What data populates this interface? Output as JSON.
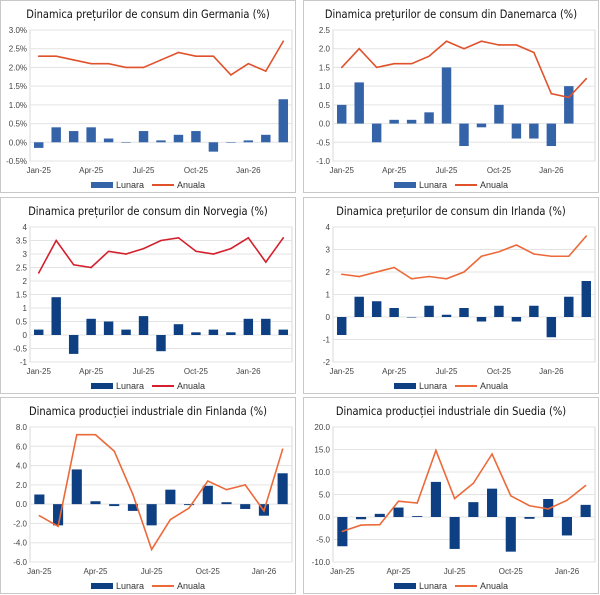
{
  "chart_data": [
    {
      "type": "bar+line",
      "title": "Dinamica prețurilor de consum din Germania (%)",
      "categories": [
        "Jan-25",
        "Feb-25",
        "Mar-25",
        "Apr-25",
        "May-25",
        "Jun-25",
        "Jul-25",
        "Aug-25",
        "Sep-25",
        "Oct-25",
        "Nov-25",
        "Dec-25",
        "Jan-26",
        "Feb-26",
        "Mar-26"
      ],
      "x_tick_labels": [
        "Jan-25",
        "Apr-25",
        "Jul-25",
        "Oct-25",
        "Jan-26"
      ],
      "ylim": [
        -0.5,
        3.0
      ],
      "y_tick_labels": [
        "-0.5%",
        "0.0%",
        "0.5%",
        "1.0%",
        "1.5%",
        "2.0%",
        "2.5%",
        "3.0%"
      ],
      "series": [
        {
          "name": "Lunara",
          "kind": "bar",
          "color": "#3563a8",
          "values": [
            -0.15,
            0.4,
            0.3,
            0.4,
            0.1,
            0,
            0.3,
            0.05,
            0.2,
            0.3,
            -0.25,
            0,
            0.05,
            0.2,
            1.15
          ]
        },
        {
          "name": "Anuala",
          "kind": "line",
          "color": "#e0522c",
          "values": [
            2.3,
            2.3,
            2.2,
            2.1,
            2.1,
            2.0,
            2.0,
            2.2,
            2.4,
            2.3,
            2.3,
            1.8,
            2.1,
            1.9,
            2.7
          ]
        }
      ],
      "grid": true,
      "legend": "bottom"
    },
    {
      "type": "bar+line",
      "title": "Dinamica prețurilor de consum din Danemarca (%)",
      "categories": [
        "Jan-25",
        "Feb-25",
        "Mar-25",
        "Apr-25",
        "May-25",
        "Jun-25",
        "Jul-25",
        "Aug-25",
        "Sep-25",
        "Oct-25",
        "Nov-25",
        "Dec-25",
        "Jan-26",
        "Feb-26",
        "Mar-26"
      ],
      "x_tick_labels": [
        "Jan-25",
        "Apr-25",
        "Jul-25",
        "Oct-25",
        "Jan-26"
      ],
      "ylim": [
        -1.0,
        2.5
      ],
      "y_tick_labels": [
        "-1.0",
        "-0.5",
        "0.0",
        "0.5",
        "1.0",
        "1.5",
        "2.0",
        "2.5"
      ],
      "series": [
        {
          "name": "Lunara",
          "kind": "bar",
          "color": "#3563a8",
          "values": [
            0.5,
            1.1,
            -0.5,
            0.1,
            0.1,
            0.3,
            1.5,
            -0.6,
            -0.1,
            0.5,
            -0.4,
            -0.4,
            -0.6,
            1.0,
            null
          ]
        },
        {
          "name": "Anuala",
          "kind": "line",
          "color": "#e0522c",
          "values": [
            1.5,
            2.0,
            1.5,
            1.6,
            1.6,
            1.8,
            2.2,
            2.0,
            2.2,
            2.1,
            2.1,
            1.9,
            0.8,
            0.7,
            1.2
          ]
        }
      ],
      "grid": true,
      "legend": "bottom"
    },
    {
      "type": "bar+line",
      "title": "Dinamica prețurilor de consum din Norvegia (%)",
      "categories": [
        "Jan-25",
        "Feb-25",
        "Mar-25",
        "Apr-25",
        "May-25",
        "Jun-25",
        "Jul-25",
        "Aug-25",
        "Sep-25",
        "Oct-25",
        "Nov-25",
        "Dec-25",
        "Jan-26",
        "Feb-26",
        "Mar-26"
      ],
      "x_tick_labels": [
        "Jan-25",
        "Apr-25",
        "Jul-25",
        "Oct-25",
        "Jan-26"
      ],
      "ylim": [
        -1,
        4
      ],
      "y_tick_labels": [
        "-1",
        "-0.5",
        "0",
        "0.5",
        "1",
        "1.5",
        "2",
        "2.5",
        "3",
        "3.5",
        "4"
      ],
      "series": [
        {
          "name": "Lunara",
          "kind": "bar",
          "color": "#0e3f82",
          "values": [
            0.2,
            1.4,
            -0.7,
            0.6,
            0.5,
            0.2,
            0.7,
            -0.6,
            0.4,
            0.1,
            0.2,
            0.1,
            0.6,
            0.6,
            0.2
          ]
        },
        {
          "name": "Anuala",
          "kind": "line",
          "color": "#d4202c",
          "values": [
            2.3,
            3.5,
            2.6,
            2.5,
            3.1,
            3.0,
            3.2,
            3.5,
            3.6,
            3.1,
            3.0,
            3.2,
            3.6,
            2.7,
            3.6
          ]
        }
      ],
      "grid": true,
      "legend": "bottom"
    },
    {
      "type": "bar+line",
      "title": "Dinamica prețurilor de consum din Irlanda (%)",
      "categories": [
        "Jan-25",
        "Feb-25",
        "Mar-25",
        "Apr-25",
        "May-25",
        "Jun-25",
        "Jul-25",
        "Aug-25",
        "Sep-25",
        "Oct-25",
        "Nov-25",
        "Dec-25",
        "Jan-26",
        "Feb-26",
        "Mar-26"
      ],
      "x_tick_labels": [
        "Jan-25",
        "Apr-25",
        "Jul-25",
        "Oct-25",
        "Jan-26"
      ],
      "ylim": [
        -2,
        4
      ],
      "y_tick_labels": [
        "-2",
        "-1",
        "0",
        "1",
        "2",
        "3",
        "4"
      ],
      "series": [
        {
          "name": "Lunara",
          "kind": "bar",
          "color": "#0e3f82",
          "values": [
            -0.8,
            0.9,
            0.7,
            0.4,
            0,
            0.5,
            0.1,
            0.4,
            -0.2,
            0.5,
            -0.2,
            0.5,
            -0.9,
            0.9,
            1.6
          ]
        },
        {
          "name": "Anuala",
          "kind": "line",
          "color": "#ec6a3a",
          "values": [
            1.9,
            1.8,
            2.0,
            2.2,
            1.7,
            1.8,
            1.7,
            2.0,
            2.7,
            2.9,
            3.2,
            2.8,
            2.7,
            2.7,
            3.6
          ]
        }
      ],
      "grid": true,
      "legend": "bottom"
    },
    {
      "type": "bar+line",
      "title": "Dinamica producției industriale din Finlanda (%)",
      "categories": [
        "Jan-25",
        "Feb-25",
        "Mar-25",
        "Apr-25",
        "May-25",
        "Jun-25",
        "Jul-25",
        "Aug-25",
        "Sep-25",
        "Oct-25",
        "Nov-25",
        "Dec-25",
        "Jan-26",
        "Feb-26"
      ],
      "x_tick_labels": [
        "Jan-25",
        "Apr-25",
        "Jul-25",
        "Oct-25",
        "Jan-26"
      ],
      "ylim": [
        -6.0,
        8.0
      ],
      "y_tick_labels": [
        "-6.0",
        "-4.0",
        "-2.0",
        "0.0",
        "2.0",
        "4.0",
        "6.0",
        "8.0"
      ],
      "series": [
        {
          "name": "Lunara",
          "kind": "bar",
          "color": "#0e3f82",
          "values": [
            1.0,
            -2.2,
            3.6,
            0.3,
            -0.2,
            -0.7,
            -2.2,
            1.5,
            -0.1,
            1.9,
            0.2,
            -0.5,
            -1.2,
            3.2
          ]
        },
        {
          "name": "Anuala",
          "kind": "line",
          "color": "#ec6a3a",
          "values": [
            -1.2,
            -2.3,
            7.2,
            7.2,
            5.5,
            1.0,
            -4.7,
            -1.6,
            -0.4,
            2.4,
            1.5,
            2.0,
            -0.7,
            5.7
          ]
        }
      ],
      "grid": true,
      "legend": "bottom"
    },
    {
      "type": "bar+line",
      "title": "Dinamica producției industriale din Suedia (%)",
      "categories": [
        "Jan-25",
        "Feb-25",
        "Mar-25",
        "Apr-25",
        "May-25",
        "Jun-25",
        "Jul-25",
        "Aug-25",
        "Sep-25",
        "Oct-25",
        "Nov-25",
        "Dec-25",
        "Jan-26",
        "Feb-26"
      ],
      "x_tick_labels": [
        "Jan-25",
        "Apr-25",
        "Jul-25",
        "Oct-25",
        "Jan-26"
      ],
      "ylim": [
        -10.0,
        20.0
      ],
      "y_tick_labels": [
        "-10.0",
        "-5.0",
        "0.0",
        "5.0",
        "10.0",
        "15.0",
        "20.0"
      ],
      "series": [
        {
          "name": "Lunara",
          "kind": "bar",
          "color": "#0e3f82",
          "values": [
            -6.5,
            -0.5,
            0.7,
            2.1,
            0.2,
            7.8,
            -7.1,
            3.3,
            6.3,
            -7.7,
            -0.4,
            4.0,
            -4.1,
            2.7
          ]
        },
        {
          "name": "Anuala",
          "kind": "line",
          "color": "#ec6a3a",
          "values": [
            -3.2,
            -1.8,
            -1.7,
            3.5,
            3.1,
            14.8,
            4.1,
            7.5,
            14.0,
            4.7,
            2.5,
            1.8,
            3.7,
            7.0
          ]
        }
      ],
      "grid": true,
      "legend": "bottom"
    }
  ]
}
